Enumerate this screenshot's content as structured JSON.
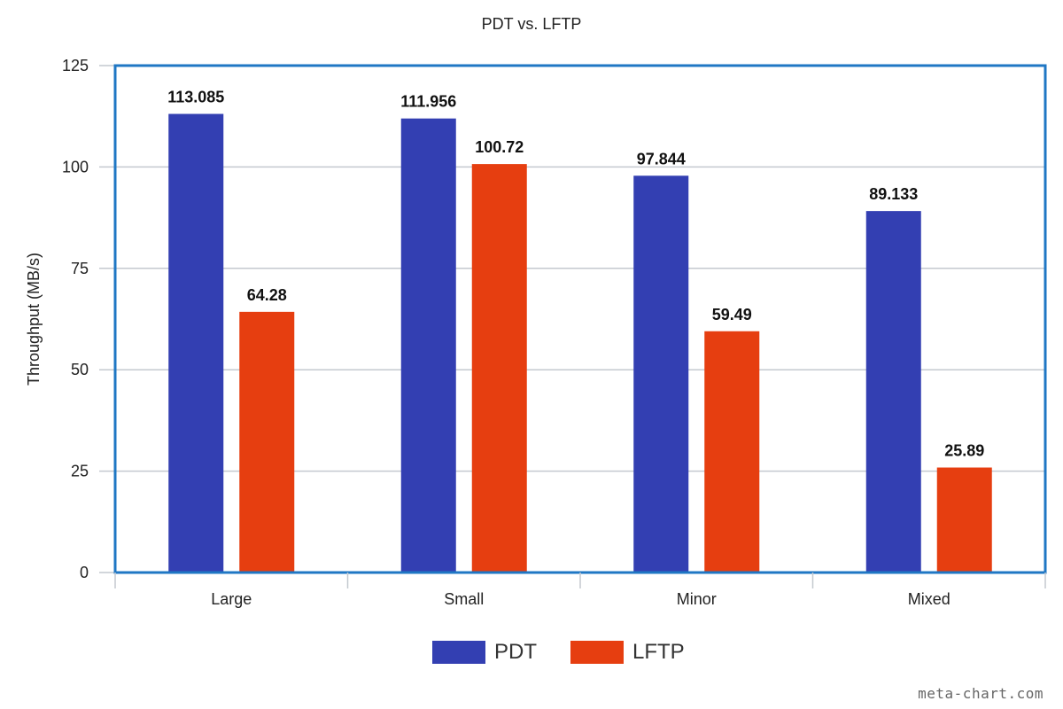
{
  "chart_data": {
    "type": "bar",
    "title": "PDT vs. LFTP",
    "xlabel": "",
    "ylabel": "Throughput (MB/s)",
    "ylim": [
      0,
      125
    ],
    "yticks": [
      0,
      25,
      50,
      75,
      100,
      125
    ],
    "categories": [
      "Large",
      "Small",
      "Minor",
      "Mixed"
    ],
    "series": [
      {
        "name": "PDT",
        "color": "#333fb2",
        "values": [
          113.085,
          111.956,
          97.844,
          89.133
        ],
        "labels": [
          "113.085",
          "111.956",
          "97.844",
          "89.133"
        ]
      },
      {
        "name": "LFTP",
        "color": "#e63e10",
        "values": [
          64.28,
          100.72,
          59.49,
          25.89
        ],
        "labels": [
          "64.28",
          "100.72",
          "59.49",
          "25.89"
        ]
      }
    ],
    "grid": true,
    "legend_position": "bottom",
    "frame_color": "#1f77c4"
  },
  "watermark": "meta-chart.com"
}
